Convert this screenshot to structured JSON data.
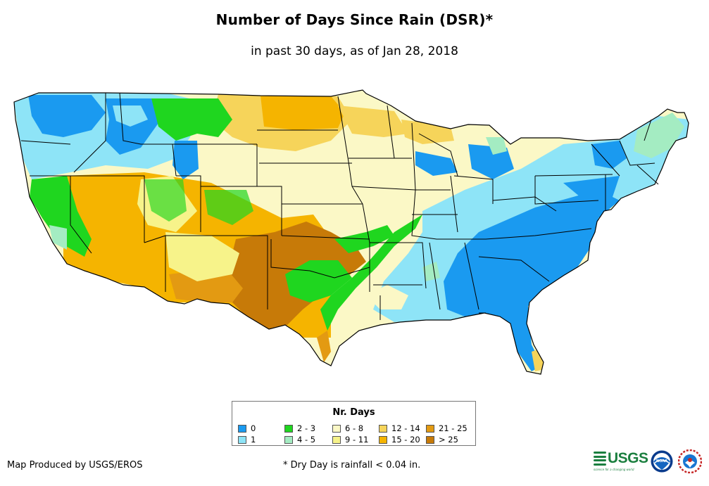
{
  "title": "Number of Days Since Rain (DSR)*",
  "subtitle": "in past 30 days, as of Jan 28, 2018",
  "legend": {
    "title": "Nr. Days",
    "items": [
      {
        "label": "0",
        "color": "#1a9af0"
      },
      {
        "label": "1",
        "color": "#8ee4f7"
      },
      {
        "label": "2 - 3",
        "color": "#1fd61f"
      },
      {
        "label": "4 - 5",
        "color": "#a4ecc2"
      },
      {
        "label": "6 - 8",
        "color": "#fbf8c6"
      },
      {
        "label": "9 - 11",
        "color": "#f7f38a"
      },
      {
        "label": "12 - 14",
        "color": "#f6d45a"
      },
      {
        "label": "15 - 20",
        "color": "#f5b400"
      },
      {
        "label": "21 - 25",
        "color": "#e39a12"
      },
      {
        "label": "> 25",
        "color": "#c77a08"
      }
    ]
  },
  "footer": {
    "producer": "Map Produced by USGS/EROS",
    "note": "* Dry Day is rainfall < 0.04 in."
  },
  "logos": {
    "usgs_text": "USGS",
    "usgs_tagline": "science for a changing world",
    "noaa_text": "NOAA"
  }
}
